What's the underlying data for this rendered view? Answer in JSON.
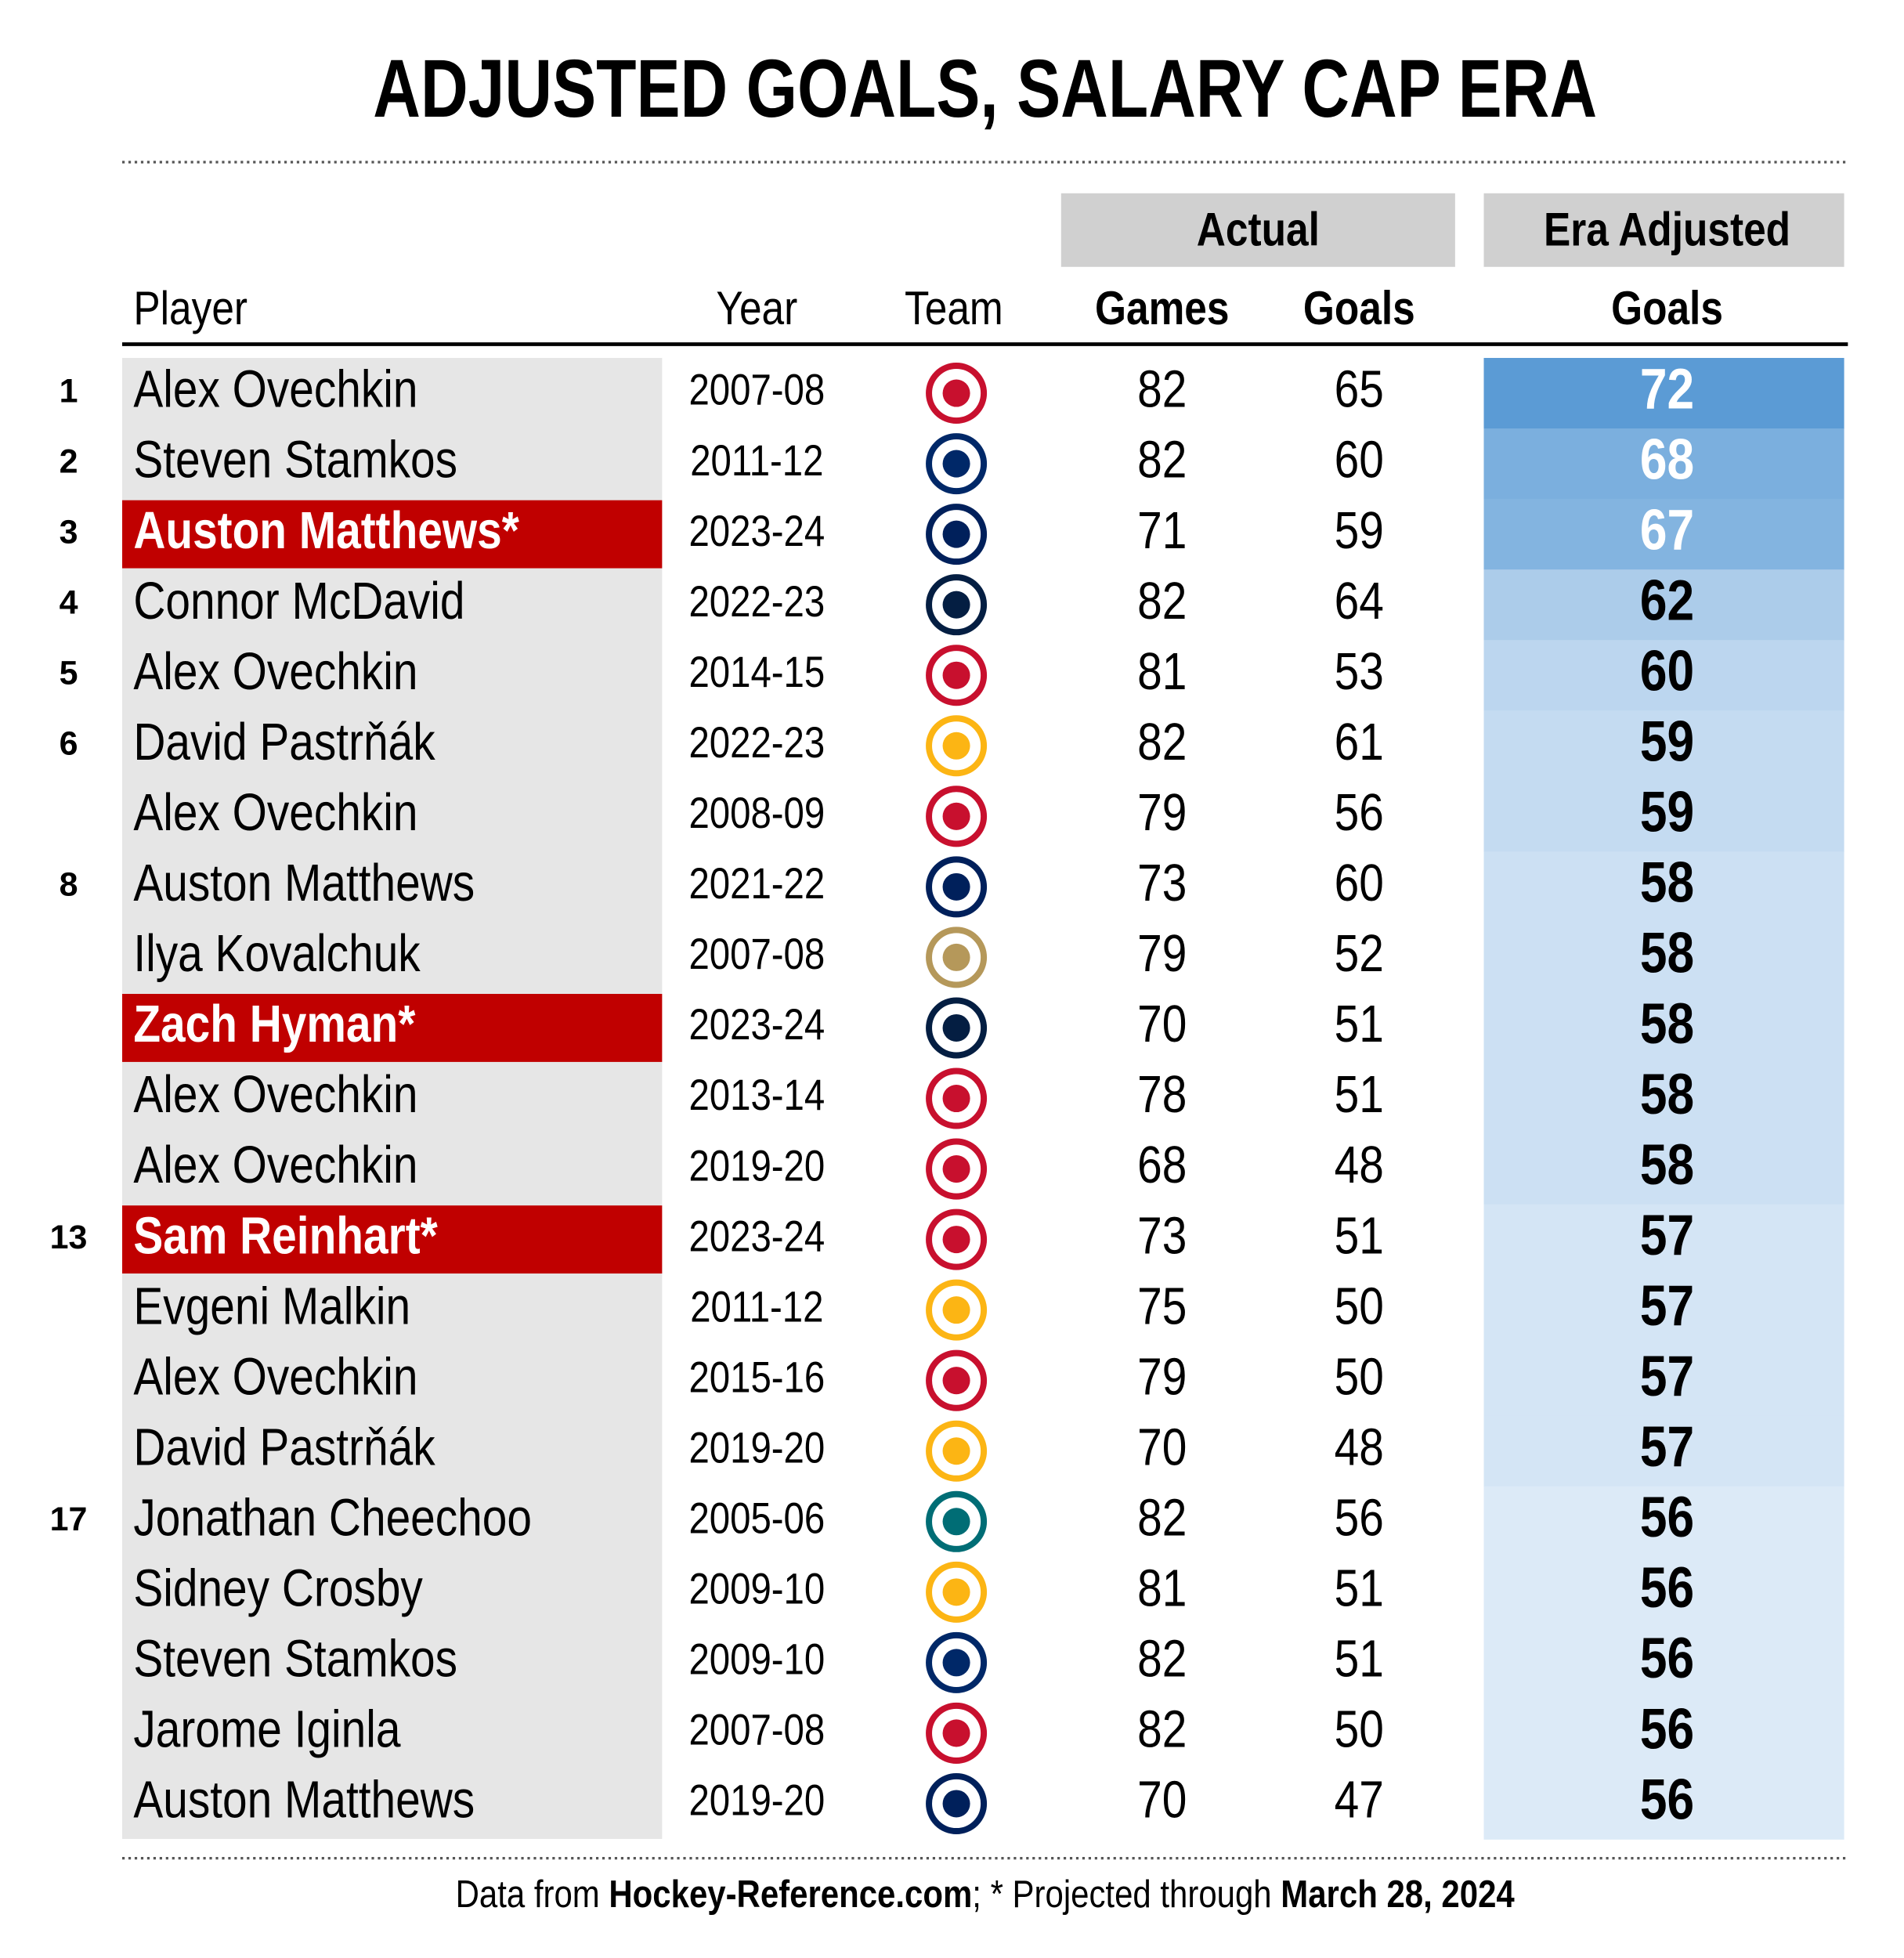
{
  "title": "ADJUSTED GOALS, SALARY CAP ERA",
  "header": {
    "group_actual": "Actual",
    "group_adjusted": "Era Adjusted",
    "columns": {
      "player": "Player",
      "year": "Year",
      "team": "Team",
      "games": "Games",
      "goals": "Goals",
      "adjusted": "Goals"
    }
  },
  "table": {
    "rows": [
      {
        "rank": 1,
        "player": "Alex Ovechkin",
        "year": "2007-08",
        "games": 82,
        "goals": 65,
        "adjusted": 72,
        "highlight": false
      },
      {
        "rank": 2,
        "player": "Steven Stamkos",
        "year": "2011-12",
        "games": 82,
        "goals": 60,
        "adjusted": 68,
        "highlight": false
      },
      {
        "rank": 3,
        "player": "Auston Matthews*",
        "year": "2023-24",
        "games": 71,
        "goals": 59,
        "adjusted": 67,
        "highlight": true
      },
      {
        "rank": 4,
        "player": "Connor McDavid",
        "year": "2022-23",
        "games": 82,
        "goals": 64,
        "adjusted": 62,
        "highlight": false
      },
      {
        "rank": 5,
        "player": "Alex Ovechkin",
        "year": "2014-15",
        "games": 81,
        "goals": 53,
        "adjusted": 60,
        "highlight": false
      },
      {
        "rank": 6,
        "player": "David Pastrňák",
        "year": "2022-23",
        "games": 82,
        "goals": 61,
        "adjusted": 59,
        "highlight": false
      },
      {
        "rank": null,
        "player": "Alex Ovechkin",
        "year": "2008-09",
        "games": 79,
        "goals": 56,
        "adjusted": 59,
        "highlight": false
      },
      {
        "rank": 8,
        "player": "Auston Matthews",
        "year": "2021-22",
        "games": 73,
        "goals": 60,
        "adjusted": 58,
        "highlight": false
      },
      {
        "rank": null,
        "player": "Ilya Kovalchuk",
        "year": "2007-08",
        "games": 79,
        "goals": 52,
        "adjusted": 58,
        "highlight": false
      },
      {
        "rank": null,
        "player": "Zach Hyman*",
        "year": "2023-24",
        "games": 70,
        "goals": 51,
        "adjusted": 58,
        "highlight": true
      },
      {
        "rank": null,
        "player": "Alex Ovechkin",
        "year": "2013-14",
        "games": 78,
        "goals": 51,
        "adjusted": 58,
        "highlight": false
      },
      {
        "rank": null,
        "player": "Alex Ovechkin",
        "year": "2019-20",
        "games": 68,
        "goals": 48,
        "adjusted": 58,
        "highlight": false
      },
      {
        "rank": 13,
        "player": "Sam Reinhart*",
        "year": "2023-24",
        "games": 73,
        "goals": 51,
        "adjusted": 57,
        "highlight": true
      },
      {
        "rank": null,
        "player": "Evgeni Malkin",
        "year": "2011-12",
        "games": 75,
        "goals": 50,
        "adjusted": 57,
        "highlight": false
      },
      {
        "rank": null,
        "player": "Alex Ovechkin",
        "year": "2015-16",
        "games": 79,
        "goals": 50,
        "adjusted": 57,
        "highlight": false
      },
      {
        "rank": null,
        "player": "David Pastrňák",
        "year": "2019-20",
        "games": 70,
        "goals": 48,
        "adjusted": 57,
        "highlight": false
      },
      {
        "rank": 17,
        "player": "Jonathan Cheechoo",
        "year": "2005-06",
        "games": 82,
        "goals": 56,
        "adjusted": 56,
        "highlight": false
      },
      {
        "rank": null,
        "player": "Sidney Crosby",
        "year": "2009-10",
        "games": 81,
        "goals": 51,
        "adjusted": 56,
        "highlight": false
      },
      {
        "rank": null,
        "player": "Steven Stamkos",
        "year": "2009-10",
        "games": 82,
        "goals": 51,
        "adjusted": 56,
        "highlight": false
      },
      {
        "rank": null,
        "player": "Jarome Iginla",
        "year": "2007-08",
        "games": 82,
        "goals": 50,
        "adjusted": 56,
        "highlight": false
      },
      {
        "rank": null,
        "player": "Auston Matthews",
        "year": "2019-20",
        "games": 70,
        "goals": 47,
        "adjusted": 56,
        "highlight": false
      }
    ]
  },
  "footer": [
    {
      "text": "Data from ",
      "bold": false
    },
    {
      "text": "Hockey-Reference.com",
      "bold": true
    },
    {
      "text": "; * Projected through ",
      "bold": false
    },
    {
      "text": "March 28, 2024",
      "bold": true
    }
  ]
}
